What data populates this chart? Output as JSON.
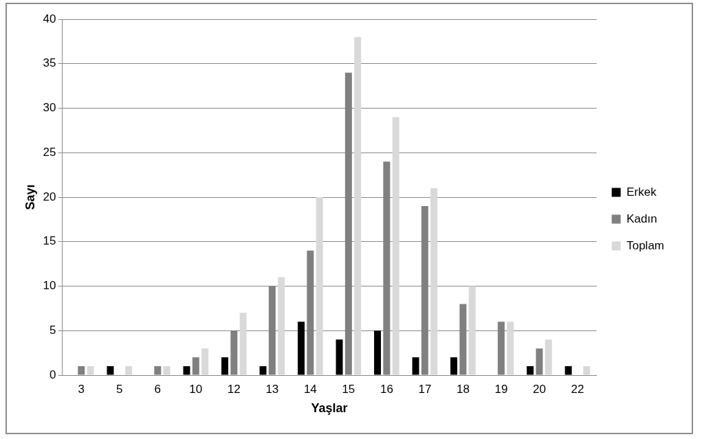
{
  "chart_data": {
    "type": "bar",
    "xlabel": "Yaşlar",
    "ylabel": "Sayı",
    "categories": [
      "3",
      "5",
      "6",
      "10",
      "12",
      "13",
      "14",
      "15",
      "16",
      "17",
      "18",
      "19",
      "20",
      "22"
    ],
    "series": [
      {
        "name": "Erkek",
        "color": "#000000",
        "values": [
          0,
          1,
          0,
          1,
          2,
          1,
          6,
          4,
          5,
          2,
          2,
          0,
          1,
          1
        ]
      },
      {
        "name": "Kadın",
        "color": "#808080",
        "values": [
          1,
          0,
          1,
          2,
          5,
          10,
          14,
          34,
          24,
          19,
          8,
          6,
          3,
          0
        ]
      },
      {
        "name": "Toplam",
        "color": "#d9d9d9",
        "values": [
          1,
          1,
          1,
          3,
          7,
          11,
          20,
          38,
          29,
          21,
          10,
          6,
          4,
          1
        ]
      }
    ],
    "ylim": [
      0,
      40
    ],
    "yticks": [
      0,
      5,
      10,
      15,
      20,
      25,
      30,
      35,
      40
    ],
    "grid": "y",
    "legend": "right"
  }
}
